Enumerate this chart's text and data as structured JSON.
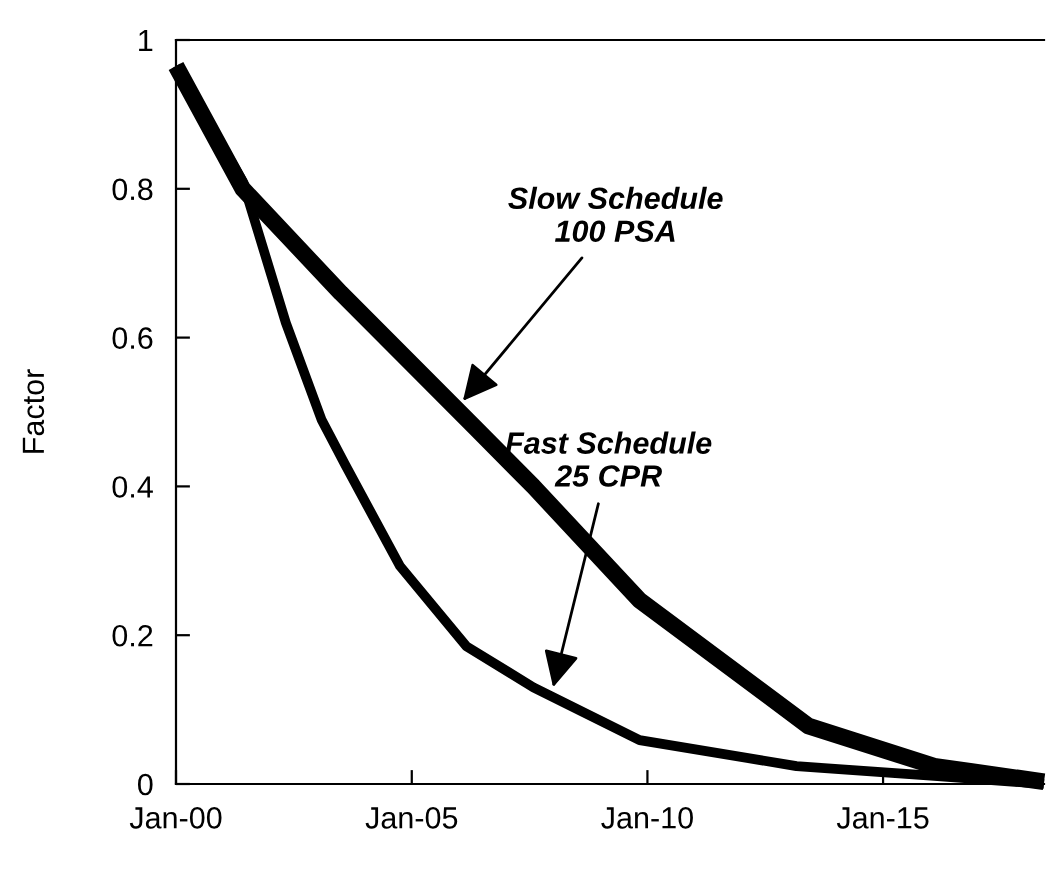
{
  "chart_data": {
    "type": "line",
    "ylabel": "Factor",
    "series": [
      {
        "color": "#000000",
        "x": [
          "2000-01",
          "2001-06",
          "2003-07",
          "2006-05",
          "2007-08",
          "2009-11",
          "2013-06",
          "2016-02",
          "2018-06"
        ],
        "values": [
          0.965,
          0.8,
          0.66,
          0.48,
          0.4,
          0.247,
          0.078,
          0.024,
          0.003
        ]
      },
      {
        "color": "#000000",
        "x": [
          "2000-01",
          "2001-06",
          "2002-05",
          "2003-02",
          "2003-08",
          "2004-10",
          "2006-03",
          "2007-08",
          "2009-11",
          "2013-03",
          "2016-02",
          "2018-06"
        ],
        "values": [
          0.965,
          0.81,
          0.62,
          0.49,
          0.43,
          0.293,
          0.185,
          0.13,
          0.059,
          0.024,
          0.011,
          0.0
        ]
      }
    ],
    "annotations": [
      {
        "text": "Slow Schedule\n100 PSA",
        "x": "2006-02",
        "y": 0.515
      },
      {
        "text": "Fast Schedule\n25 CPR",
        "x": "2008-01",
        "y": 0.13
      }
    ],
    "xlim": [
      "2000-01",
      "2018-06"
    ],
    "xticks": [
      {
        "value": "2000-01",
        "label": "Jan-00"
      },
      {
        "value": "2005-01",
        "label": "Jan-05"
      },
      {
        "value": "2010-01",
        "label": "Jan-10"
      },
      {
        "value": "2015-01",
        "label": "Jan-15"
      }
    ],
    "ylim": [
      0,
      1
    ],
    "yticks": [
      0,
      0.2,
      0.4,
      0.6,
      0.8,
      1
    ],
    "grid": false,
    "marker": "none",
    "line_style": "solid"
  }
}
